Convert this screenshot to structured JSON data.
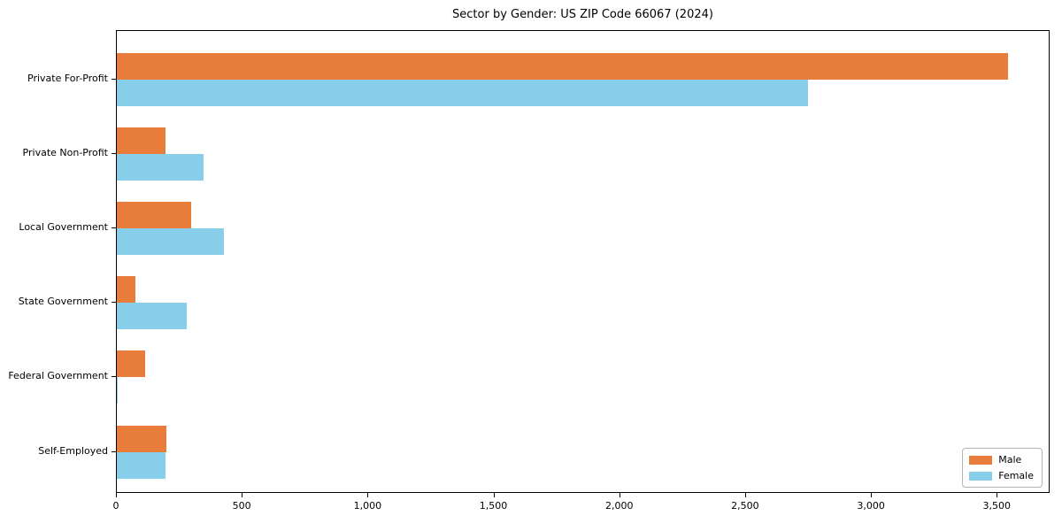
{
  "title": "Sector by Gender: US ZIP Code 66067 (2024)",
  "chart_data": {
    "type": "bar",
    "orientation": "horizontal",
    "title": "Sector by Gender: US ZIP Code 66067 (2024)",
    "xlabel": "",
    "ylabel": "",
    "categories": [
      "Private For-Profit",
      "Private Non-Profit",
      "Local Government",
      "State Government",
      "Federal Government",
      "Self-Employed"
    ],
    "series": [
      {
        "name": "Male",
        "color": "#E87D3B",
        "values": [
          3540,
          193,
          296,
          75,
          114,
          196
        ]
      },
      {
        "name": "Female",
        "color": "#87CEEB",
        "values": [
          2745,
          346,
          424,
          278,
          5,
          194
        ]
      }
    ],
    "xlim": [
      0,
      3710
    ],
    "x_ticks": [
      0,
      500,
      1000,
      1500,
      2000,
      2500,
      3000,
      3500
    ],
    "x_tick_labels": [
      "0",
      "500",
      "1,000",
      "1,500",
      "2,000",
      "2,500",
      "3,000",
      "3,500"
    ],
    "grid": false,
    "legend_position": "lower right",
    "axis_color": "#000000"
  }
}
